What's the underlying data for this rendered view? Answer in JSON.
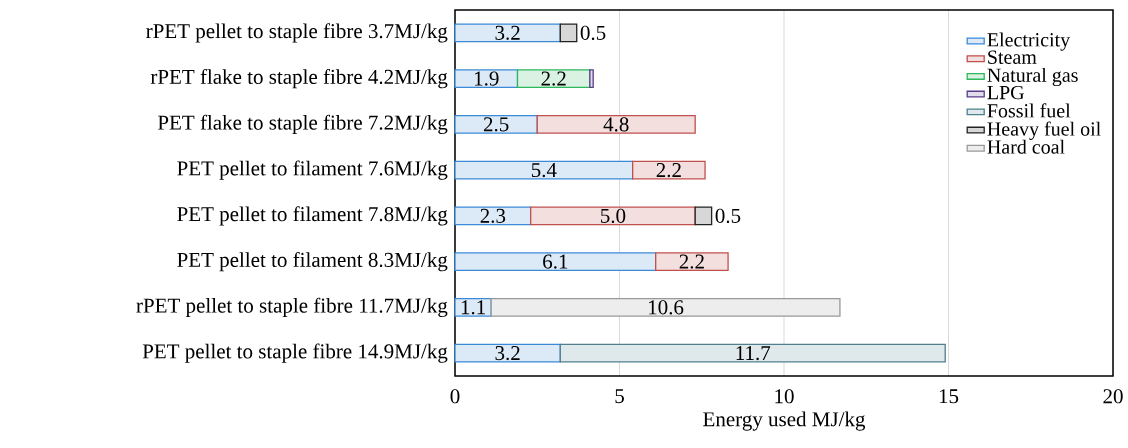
{
  "chart_data": {
    "type": "bar",
    "orientation": "horizontal",
    "stacked": true,
    "xlabel": "Energy used MJ/kg",
    "categories": [
      "rPET pellet to staple fibre 3.7MJ/kg",
      "rPET flake to staple fibre 4.2MJ/kg",
      "PET flake to staple fibre 7.2MJ/kg",
      "PET pellet to filament 7.6MJ/kg",
      "PET pellet to filament 7.8MJ/kg",
      "PET pellet to filament 8.3MJ/kg",
      "rPET pellet to staple fibre 11.7MJ/kg",
      "PET pellet to staple fibre 14.9MJ/kg"
    ],
    "series": [
      {
        "name": "Electricity",
        "color": "#3b8ad8",
        "values": [
          3.2,
          1.9,
          2.5,
          5.4,
          2.3,
          6.1,
          1.1,
          3.2
        ],
        "value_labels": [
          "3.2",
          "1.9",
          "2.5",
          "5.4",
          "2.3",
          "6.1",
          "1.1",
          "3.2"
        ]
      },
      {
        "name": "Steam",
        "color": "#c0504d",
        "values": [
          null,
          null,
          4.8,
          2.2,
          5.0,
          2.2,
          null,
          null
        ],
        "value_labels": [
          null,
          null,
          "4.8",
          "2.2",
          "5.0",
          "2.2",
          null,
          null
        ]
      },
      {
        "name": "Natural gas",
        "color": "#2db85c",
        "values": [
          null,
          2.2,
          null,
          null,
          null,
          null,
          null,
          null
        ],
        "value_labels": [
          null,
          "2.2",
          null,
          null,
          null,
          null,
          null,
          null
        ]
      },
      {
        "name": "LPG",
        "color": "#5a3d8a",
        "values": [
          null,
          0.1,
          null,
          null,
          null,
          null,
          null,
          null
        ],
        "value_labels": [
          null,
          null,
          null,
          null,
          null,
          null,
          null,
          null
        ]
      },
      {
        "name": "Fossil fuel",
        "color": "#4f7f8c",
        "values": [
          null,
          null,
          null,
          null,
          null,
          null,
          null,
          11.7
        ],
        "value_labels": [
          null,
          null,
          null,
          null,
          null,
          null,
          null,
          "11.7"
        ]
      },
      {
        "name": "Heavy fuel oil",
        "color": "#222222",
        "values": [
          0.5,
          null,
          null,
          null,
          0.5,
          null,
          null,
          null
        ],
        "value_labels": [
          "0.5",
          null,
          null,
          null,
          "0.5",
          null,
          null,
          null
        ]
      },
      {
        "name": "Hard coal",
        "color": "#999999",
        "values": [
          null,
          null,
          null,
          null,
          null,
          null,
          10.6,
          null
        ],
        "value_labels": [
          null,
          null,
          null,
          null,
          null,
          null,
          "10.6",
          null
        ]
      }
    ],
    "xlim": [
      0,
      20
    ],
    "xticks": [
      0,
      5,
      10,
      15,
      20
    ],
    "grid": "x",
    "legend": "top right"
  }
}
